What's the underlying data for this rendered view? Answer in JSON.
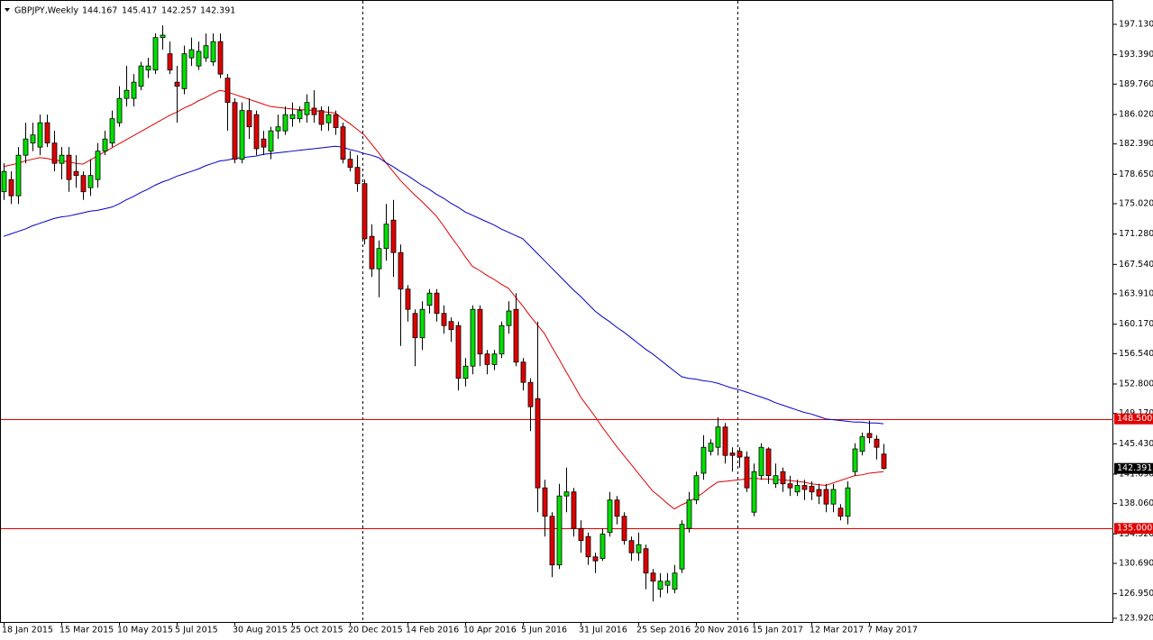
{
  "chart_data": {
    "type": "candlestick",
    "title": "GBPJPY,Weekly",
    "last_bar": {
      "open": 144.167,
      "high": 145.417,
      "low": 142.257,
      "close": 142.391
    },
    "categories": [
      "18 Jan 2015",
      null,
      null,
      null,
      null,
      null,
      null,
      null,
      "15 Mar 2015",
      null,
      null,
      null,
      null,
      null,
      null,
      null,
      "10 May 2015",
      null,
      null,
      null,
      null,
      null,
      null,
      null,
      "5 Jul 2015",
      null,
      null,
      null,
      null,
      null,
      null,
      null,
      "30 Aug 2015",
      null,
      null,
      null,
      null,
      null,
      null,
      null,
      "25 Oct 2015",
      null,
      null,
      null,
      null,
      null,
      null,
      null,
      "20 Dec 2015",
      null,
      null,
      null,
      null,
      null,
      null,
      null,
      "14 Feb 2016",
      null,
      null,
      null,
      null,
      null,
      null,
      null,
      "10 Apr 2016",
      null,
      null,
      null,
      null,
      null,
      null,
      null,
      "5 Jun 2016",
      null,
      null,
      null,
      null,
      null,
      null,
      null,
      "31 Jul 2016",
      null,
      null,
      null,
      null,
      null,
      null,
      null,
      "25 Sep 2016",
      null,
      null,
      null,
      null,
      null,
      null,
      null,
      "20 Nov 2016",
      null,
      null,
      null,
      null,
      null,
      null,
      null,
      "15 Jan 2017",
      null,
      null,
      null,
      null,
      null,
      null,
      null,
      "12 Mar 2017",
      null,
      null,
      null,
      null,
      null,
      null,
      null,
      "7 May 2017",
      null,
      null
    ],
    "open": [
      176.5,
      178,
      176,
      181,
      182.5,
      182,
      185,
      182.5,
      180,
      181,
      179,
      178.5,
      177,
      178,
      181.5,
      182.5,
      185,
      188,
      188,
      189.5,
      191.5,
      191.5,
      195.5,
      193.5,
      190,
      189.2,
      193,
      192,
      193,
      192.5,
      195,
      190.5,
      187.5,
      180.5,
      186.5,
      186,
      183,
      181.5,
      184,
      184,
      185.5,
      185.5,
      186,
      186.8,
      186.5,
      185,
      186,
      184.5,
      180.5,
      179.5,
      177.5,
      171,
      167,
      169.5,
      173,
      169,
      164.5,
      161.5,
      158.5,
      162.5,
      164,
      161.5,
      160.5,
      160,
      153.5,
      155,
      162,
      156.5,
      155.2,
      156.5,
      160,
      162,
      155.5,
      153,
      151,
      140,
      136.5,
      130.5,
      139,
      139.5,
      135,
      134,
      131.5,
      131.3,
      134.5,
      138.5,
      136.5,
      133.5,
      132,
      132.5,
      129.5,
      127.5,
      128,
      127.5,
      130,
      135,
      138.5,
      141.8,
      144.5,
      145,
      147.5,
      144.3,
      144.5,
      143.8,
      137,
      141.5,
      144.8,
      140.5,
      142,
      140.5,
      139.5,
      140.3,
      140.2,
      139.8,
      139.8,
      138,
      137.5,
      136.5,
      142,
      144.5,
      146.7,
      146,
      144.167
    ],
    "high": [
      180,
      179,
      182,
      185,
      185,
      186,
      186,
      184,
      182,
      182,
      181,
      179,
      180.5,
      182.5,
      184,
      186.5,
      189.5,
      192,
      191,
      192.5,
      193,
      196,
      197,
      195,
      192,
      194.5,
      195.5,
      195,
      196,
      196,
      196,
      191,
      188,
      187.5,
      188,
      186.5,
      184,
      184.5,
      186,
      187,
      187.5,
      187,
      188.5,
      189,
      187,
      187,
      186.5,
      185,
      181.5,
      181,
      178,
      172.5,
      170.5,
      175,
      175.5,
      170,
      165,
      162,
      163,
      164.5,
      164.5,
      162.5,
      161,
      160.5,
      156,
      162.5,
      162.5,
      157,
      157,
      160.5,
      163,
      164,
      156,
      153.5,
      160.5,
      141,
      137,
      140.5,
      142.5,
      140,
      136,
      134.5,
      132,
      135,
      139.5,
      139,
      137,
      134,
      134.5,
      133,
      130,
      129.5,
      129.5,
      130.5,
      136,
      139.5,
      142,
      146.5,
      146,
      148.7,
      148,
      145,
      145,
      144.5,
      143,
      145.5,
      145,
      143,
      142.5,
      141.5,
      141,
      141,
      140.8,
      140.5,
      140.5,
      140.5,
      138,
      140.8,
      145.5,
      146.8,
      148.3,
      146.5,
      145.417
    ],
    "low": [
      175.5,
      175,
      175,
      180,
      181.5,
      181,
      182,
      179,
      178,
      176.5,
      177,
      175.5,
      176,
      177,
      181,
      182,
      184.5,
      187,
      187,
      189,
      190.5,
      191,
      194,
      191,
      185,
      188.5,
      192,
      191.5,
      192.5,
      192,
      190.5,
      184,
      180,
      180,
      183,
      181,
      181,
      180.5,
      183,
      183.5,
      184.5,
      185,
      185,
      185,
      184,
      184,
      183.5,
      180,
      179,
      176.5,
      170,
      166,
      163.5,
      168,
      166,
      157.5,
      160.5,
      155,
      157,
      161.5,
      160.5,
      159,
      158,
      152,
      152.5,
      154,
      155,
      154,
      154.5,
      156,
      159,
      155,
      152,
      147,
      137,
      134,
      129,
      130,
      137,
      134,
      132,
      130.5,
      129.5,
      131,
      134,
      135.5,
      133,
      131,
      131,
      127.5,
      126,
      126.5,
      127,
      127,
      129.5,
      134.5,
      138,
      141,
      144,
      144,
      143,
      142,
      142.5,
      139.5,
      136.5,
      141,
      140.5,
      140,
      139.5,
      139,
      139,
      138.5,
      138.5,
      138,
      137,
      137,
      136,
      135.5,
      141.5,
      144,
      145.5,
      143.5,
      142.257
    ],
    "close": [
      179,
      176,
      181,
      183,
      183.5,
      185,
      182.5,
      180,
      181,
      178,
      178.5,
      176.5,
      178.5,
      181.5,
      183,
      185.5,
      188,
      189,
      190,
      192,
      192,
      195.5,
      195.8,
      191.5,
      189.5,
      193.5,
      194,
      193.8,
      194.5,
      195,
      191,
      187.5,
      180.5,
      186.5,
      184.5,
      181.8,
      182,
      184,
      184.5,
      186,
      186,
      186.5,
      187.5,
      186,
      184.8,
      186,
      184.4,
      180.5,
      179.5,
      177.5,
      170.7,
      167,
      169.5,
      172.5,
      169,
      164.5,
      162,
      158.5,
      162,
      164,
      161.5,
      160,
      159.5,
      153.5,
      155,
      162,
      156.5,
      155.2,
      156.5,
      160,
      161.8,
      155.5,
      153,
      150,
      140,
      136.5,
      130.5,
      139,
      139.5,
      135,
      133.5,
      131.5,
      131,
      134.3,
      138.5,
      136.5,
      133.5,
      132,
      133,
      129.5,
      128.5,
      128.5,
      128.5,
      129.5,
      135.5,
      138.5,
      141.5,
      145,
      145.5,
      147.5,
      144,
      144,
      143.8,
      140,
      142,
      145,
      141.5,
      141.5,
      140.5,
      140,
      140.3,
      139.8,
      139.5,
      139,
      138,
      139.8,
      136.5,
      140,
      144.8,
      146.3,
      146.2,
      145,
      142.391
    ],
    "up_color": "#00e000",
    "down_color": "#e00000",
    "moving_averages": [
      {
        "color": "#e00000",
        "values": [
          179.6,
          179.8,
          180.0,
          180.3,
          180.5,
          180.7,
          180.6,
          180.4,
          180.3,
          180.2,
          180.0,
          179.9,
          180.4,
          180.9,
          181.4,
          181.9,
          182.4,
          182.9,
          183.4,
          183.9,
          184.4,
          184.9,
          185.4,
          185.9,
          186.3,
          186.8,
          187.2,
          187.7,
          188.1,
          188.6,
          189.0,
          188.8,
          188.5,
          188.2,
          187.9,
          187.6,
          187.3,
          187.0,
          186.9,
          186.8,
          186.7,
          186.6,
          186.6,
          186.5,
          186.4,
          186.3,
          186.2,
          185.5,
          184.9,
          184.2,
          183.5,
          182.4,
          181.3,
          180.1,
          179.0,
          177.9,
          177.0,
          176.1,
          175.3,
          174.4,
          173.5,
          172.3,
          171.0,
          169.8,
          168.5,
          167.3,
          166.8,
          166.2,
          165.7,
          165.1,
          164.6,
          163.5,
          162.4,
          161.2,
          160.1,
          159.0,
          157.4,
          155.9,
          154.3,
          152.8,
          151.2,
          150.0,
          148.8,
          147.5,
          146.3,
          145.1,
          144.0,
          142.9,
          141.8,
          140.7,
          139.6,
          138.9,
          138.1,
          137.4,
          137.9,
          138.3,
          138.8,
          139.4,
          140.1,
          140.7,
          140.8,
          140.9,
          141.0,
          141.1,
          141.2,
          141.1,
          141.1,
          141.0,
          141.0,
          140.9,
          140.8,
          140.7,
          140.5,
          140.4,
          140.3,
          140.6,
          140.9,
          141.2,
          141.5,
          141.6,
          141.8,
          141.9,
          142.0
        ]
      },
      {
        "color": "#0000cc",
        "values": [
          171.0,
          171.3,
          171.6,
          171.9,
          172.3,
          172.6,
          172.9,
          173.2,
          173.4,
          173.5,
          173.7,
          173.9,
          174.1,
          174.2,
          174.4,
          174.6,
          175.0,
          175.5,
          175.9,
          176.4,
          176.8,
          177.3,
          177.7,
          178.0,
          178.4,
          178.7,
          179.0,
          179.3,
          179.7,
          180.0,
          180.3,
          180.4,
          180.6,
          180.7,
          180.8,
          180.9,
          181.1,
          181.2,
          181.3,
          181.4,
          181.5,
          181.6,
          181.7,
          181.8,
          181.9,
          182.0,
          182.1,
          182.0,
          181.7,
          181.5,
          181.2,
          181.0,
          180.7,
          180.1,
          179.6,
          179.0,
          178.5,
          177.9,
          177.3,
          176.8,
          176.2,
          175.7,
          175.1,
          174.6,
          174.0,
          173.6,
          173.2,
          172.8,
          172.4,
          171.9,
          171.5,
          171.1,
          170.7,
          169.8,
          168.9,
          168.0,
          167.1,
          166.2,
          165.3,
          164.4,
          163.6,
          162.7,
          161.8,
          161.1,
          160.5,
          159.8,
          159.2,
          158.5,
          157.8,
          157.1,
          156.5,
          155.8,
          155.1,
          154.4,
          153.7,
          153.5,
          153.4,
          153.2,
          153.1,
          152.9,
          152.6,
          152.3,
          152.1,
          151.8,
          151.5,
          151.2,
          150.9,
          150.5,
          150.2,
          149.9,
          149.6,
          149.3,
          149.1,
          148.8,
          148.5,
          148.4,
          148.3,
          148.2,
          148.1,
          148.1,
          148.0,
          148.0,
          147.9
        ]
      }
    ],
    "hlines": [
      {
        "value": 148.5,
        "label": "148.500",
        "color": "#e00000"
      },
      {
        "value": 135,
        "label": "135.000",
        "color": "#e00000"
      }
    ],
    "ylim": [
      123.47,
      200.13
    ],
    "yticks": [
      {
        "value": 197.13,
        "label": "197.130"
      },
      {
        "value": 193.39,
        "label": "193.390"
      },
      {
        "value": 189.76,
        "label": "189.760"
      },
      {
        "value": 186.02,
        "label": "186.020"
      },
      {
        "value": 182.39,
        "label": "182.390"
      },
      {
        "value": 178.65,
        "label": "178.650"
      },
      {
        "value": 175.02,
        "label": "175.020"
      },
      {
        "value": 171.28,
        "label": "171.280"
      },
      {
        "value": 167.54,
        "label": "167.540"
      },
      {
        "value": 163.91,
        "label": "163.910"
      },
      {
        "value": 160.17,
        "label": "160.170"
      },
      {
        "value": 156.54,
        "label": "156.540"
      },
      {
        "value": 152.8,
        "label": "152.800"
      },
      {
        "value": 149.17,
        "label": "149.170"
      },
      {
        "value": 145.43,
        "label": "145.430"
      },
      {
        "value": 141.69,
        "label": "141.690"
      },
      {
        "value": 138.06,
        "label": "138.060"
      },
      {
        "value": 134.32,
        "label": "134.320"
      },
      {
        "value": 130.69,
        "label": "130.690"
      },
      {
        "value": 126.95,
        "label": "126.950"
      },
      {
        "value": 123.92,
        "label": "123.920"
      }
    ]
  }
}
